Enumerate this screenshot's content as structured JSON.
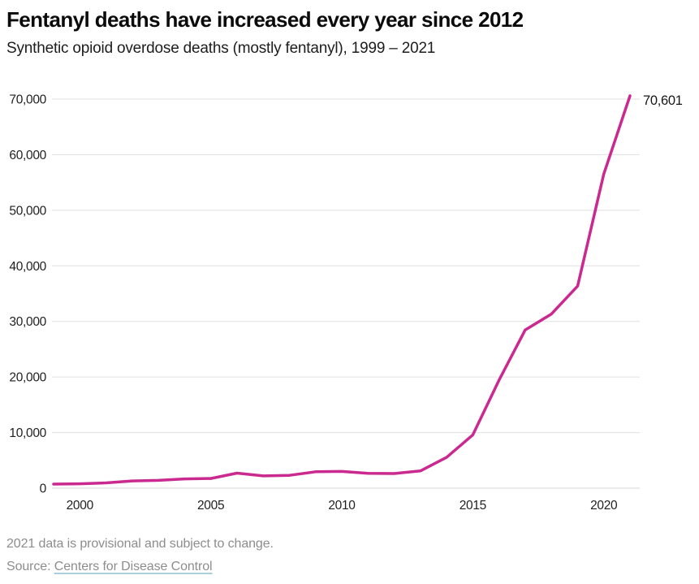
{
  "header": {
    "title": "Fentanyl deaths have increased every year since 2012",
    "subtitle": "Synthetic opioid overdose deaths (mostly fentanyl), 1999 – 2021"
  },
  "chart_data": {
    "type": "line",
    "title": "Fentanyl deaths have increased every year since 2012",
    "subtitle": "Synthetic opioid overdose deaths (mostly fentanyl), 1999 – 2021",
    "x": [
      1999,
      2000,
      2001,
      2002,
      2003,
      2004,
      2005,
      2006,
      2007,
      2008,
      2009,
      2010,
      2011,
      2012,
      2013,
      2014,
      2015,
      2016,
      2017,
      2018,
      2019,
      2020,
      2021
    ],
    "values": [
      730,
      782,
      957,
      1295,
      1400,
      1664,
      1742,
      2707,
      2213,
      2306,
      2946,
      3007,
      2666,
      2628,
      3105,
      5544,
      9580,
      19413,
      28466,
      31335,
      36359,
      56516,
      70601
    ],
    "series_name": "Synthetic opioid overdose deaths",
    "x_range": [
      1999,
      2021
    ],
    "y_axis_max": 70000,
    "y_ticks": [
      0,
      10000,
      20000,
      30000,
      40000,
      50000,
      60000,
      70000
    ],
    "y_tick_labels": [
      "0",
      "10,000",
      "20,000",
      "30,000",
      "40,000",
      "50,000",
      "60,000",
      "70,000"
    ],
    "x_ticks": [
      2000,
      2005,
      2010,
      2015,
      2020
    ],
    "x_tick_labels": [
      "2000",
      "2005",
      "2010",
      "2015",
      "2020"
    ],
    "end_label": "70,601",
    "grid": "horizontal",
    "legend": "none",
    "line_color": "#ca2a8f",
    "grid_color": "#e0e0e0",
    "baseline_color": "#d4d4d4"
  },
  "footer": {
    "note": "2021 data is provisional and subject to change.",
    "source_prefix": "Source: ",
    "source_link": "Centers for Disease Control"
  }
}
